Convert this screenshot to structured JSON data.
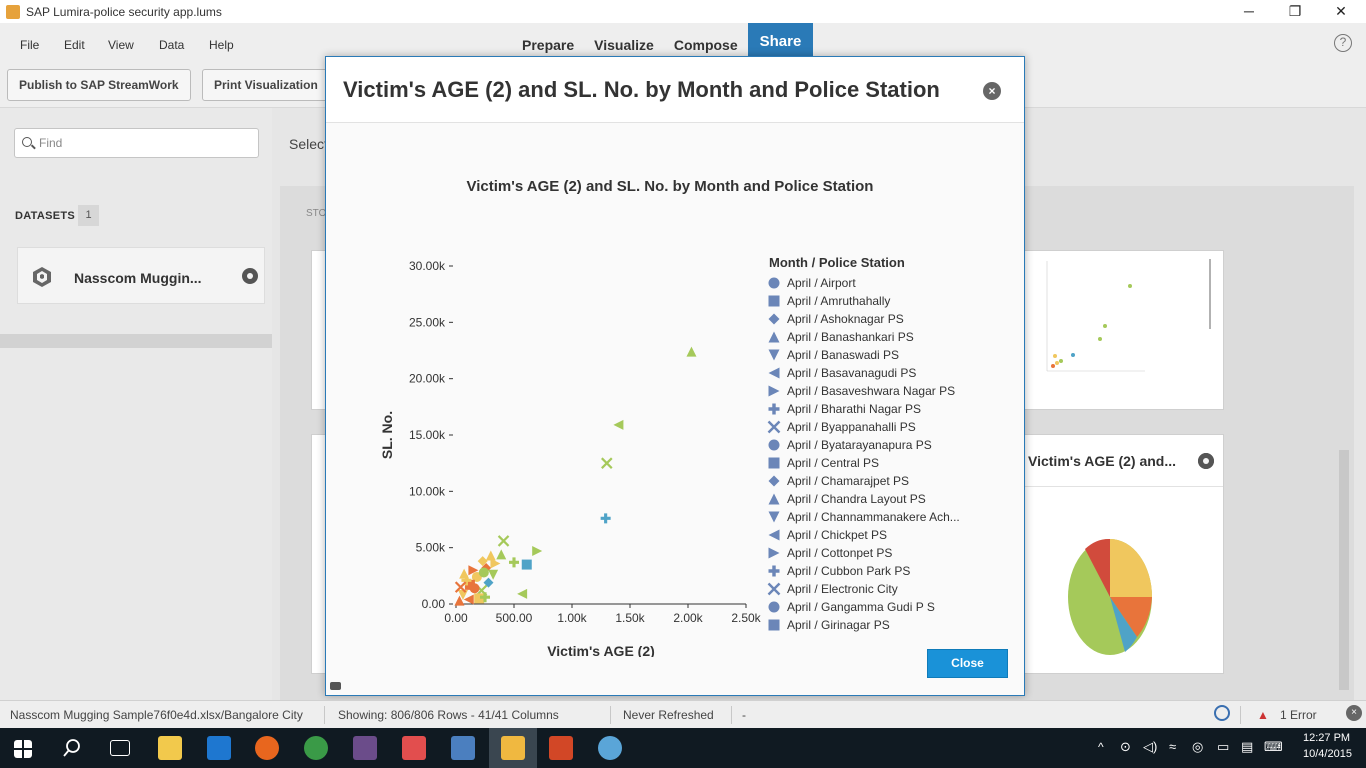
{
  "window": {
    "title": "SAP Lumira-police security app.lums",
    "controls": {
      "minimize": "─",
      "maximize": "❐",
      "close": "✕"
    }
  },
  "menu": {
    "items": [
      "File",
      "Edit",
      "View",
      "Data",
      "Help"
    ]
  },
  "tabs": [
    "Prepare",
    "Visualize",
    "Compose",
    "Share"
  ],
  "toolbar": {
    "publish": "Publish to SAP StreamWork",
    "print": "Print Visualization"
  },
  "search": {
    "placeholder": "Find"
  },
  "datasets": {
    "label": "DATASETS",
    "count": "1",
    "item": "Nasscom Muggin..."
  },
  "main": {
    "select_text": "Select",
    "story_label": "STO"
  },
  "background_card": {
    "title": "Victim's AGE (2) and..."
  },
  "modal": {
    "title": "Victim's AGE (2) and SL. No. by Month and Police Station",
    "close_button": "Close"
  },
  "chart_data": {
    "type": "scatter",
    "title": "Victim's AGE (2) and SL. No. by Month and Police Station",
    "xlabel": "Victim's AGE (2)",
    "ylabel": "SL. No.",
    "xlim": [
      0,
      2500
    ],
    "ylim": [
      0,
      30000
    ],
    "x_ticks": [
      "0.00",
      "500.00",
      "1.00k",
      "1.50k",
      "2.00k",
      "2.50k"
    ],
    "y_ticks": [
      "0.00",
      "5.00k",
      "10.00k",
      "15.00k",
      "20.00k",
      "25.00k",
      "30.00k"
    ],
    "legend_title": "Month / Police Station",
    "legend": [
      {
        "label": "April / Airport",
        "shape": "circle"
      },
      {
        "label": "April / Amruthahally",
        "shape": "square"
      },
      {
        "label": "April / Ashoknagar PS",
        "shape": "diamond"
      },
      {
        "label": "April / Banashankari PS",
        "shape": "triangle-up"
      },
      {
        "label": "April / Banaswadi PS",
        "shape": "triangle-down"
      },
      {
        "label": "April / Basavanagudi PS",
        "shape": "triangle-left"
      },
      {
        "label": "April / Basaveshwara Nagar PS",
        "shape": "triangle-right"
      },
      {
        "label": "April / Bharathi Nagar PS",
        "shape": "plus"
      },
      {
        "label": "April / Byappanahalli PS",
        "shape": "x"
      },
      {
        "label": "April / Byatarayanapura PS",
        "shape": "circle"
      },
      {
        "label": "April / Central PS",
        "shape": "square"
      },
      {
        "label": "April / Chamarajpet PS",
        "shape": "diamond"
      },
      {
        "label": "April / Chandra Layout PS",
        "shape": "triangle-up"
      },
      {
        "label": "April / Channammanakere Ach...",
        "shape": "triangle-down"
      },
      {
        "label": "April / Chickpet PS",
        "shape": "triangle-left"
      },
      {
        "label": "April / Cottonpet PS",
        "shape": "triangle-right"
      },
      {
        "label": "April / Cubbon Park PS",
        "shape": "plus"
      },
      {
        "label": "April / Electronic City",
        "shape": "x"
      },
      {
        "label": "April / Gangamma Gudi P S",
        "shape": "circle"
      },
      {
        "label": "April / Girinagar PS",
        "shape": "square"
      }
    ],
    "points": [
      {
        "x": 2030,
        "y": 22400,
        "shape": "triangle-up",
        "color": "#a5c95a"
      },
      {
        "x": 1400,
        "y": 15900,
        "shape": "triangle-left",
        "color": "#a5c95a"
      },
      {
        "x": 1300,
        "y": 12500,
        "shape": "x",
        "color": "#a5c95a"
      },
      {
        "x": 1290,
        "y": 7600,
        "shape": "plus",
        "color": "#4fa3c7"
      },
      {
        "x": 610,
        "y": 3500,
        "shape": "square",
        "color": "#4fa3c7"
      },
      {
        "x": 700,
        "y": 4700,
        "shape": "triangle-right",
        "color": "#a5c95a"
      },
      {
        "x": 500,
        "y": 3700,
        "shape": "plus",
        "color": "#a5c95a"
      },
      {
        "x": 410,
        "y": 5600,
        "shape": "x",
        "color": "#a5c95a"
      },
      {
        "x": 390,
        "y": 4400,
        "shape": "triangle-up",
        "color": "#a5c95a"
      },
      {
        "x": 570,
        "y": 900,
        "shape": "triangle-left",
        "color": "#a5c95a"
      },
      {
        "x": 300,
        "y": 4300,
        "shape": "triangle-up",
        "color": "#f0c75e"
      },
      {
        "x": 260,
        "y": 3200,
        "shape": "diamond",
        "color": "#e8743b"
      },
      {
        "x": 180,
        "y": 2400,
        "shape": "circle",
        "color": "#f0c75e"
      },
      {
        "x": 120,
        "y": 1700,
        "shape": "square",
        "color": "#e8743b"
      },
      {
        "x": 60,
        "y": 800,
        "shape": "triangle-down",
        "color": "#f0c75e"
      },
      {
        "x": 220,
        "y": 1200,
        "shape": "x",
        "color": "#a5c95a"
      },
      {
        "x": 150,
        "y": 3000,
        "shape": "triangle-right",
        "color": "#e8743b"
      },
      {
        "x": 90,
        "y": 2100,
        "shape": "plus",
        "color": "#f0c75e"
      },
      {
        "x": 240,
        "y": 2800,
        "shape": "circle",
        "color": "#a5c95a"
      },
      {
        "x": 30,
        "y": 300,
        "shape": "triangle-up",
        "color": "#e8743b"
      },
      {
        "x": 200,
        "y": 500,
        "shape": "square",
        "color": "#f0c75e"
      },
      {
        "x": 280,
        "y": 1900,
        "shape": "diamond",
        "color": "#4fa3c7"
      },
      {
        "x": 110,
        "y": 400,
        "shape": "triangle-left",
        "color": "#e8743b"
      },
      {
        "x": 320,
        "y": 2600,
        "shape": "triangle-down",
        "color": "#a5c95a"
      },
      {
        "x": 70,
        "y": 2700,
        "shape": "triangle-up",
        "color": "#f0c75e"
      },
      {
        "x": 160,
        "y": 1400,
        "shape": "circle",
        "color": "#e8743b"
      },
      {
        "x": 250,
        "y": 600,
        "shape": "plus",
        "color": "#a5c95a"
      },
      {
        "x": 340,
        "y": 3600,
        "shape": "triangle-right",
        "color": "#f0c75e"
      },
      {
        "x": 40,
        "y": 1500,
        "shape": "x",
        "color": "#e8743b"
      },
      {
        "x": 230,
        "y": 3800,
        "shape": "diamond",
        "color": "#f0c75e"
      }
    ],
    "legend_color": "#6b86b8"
  },
  "status": {
    "file": "Nasscom Mugging Sample76f0e4d.xlsx/Bangalore City",
    "rows": "Showing: 806/806 Rows - 41/41 Columns",
    "refresh": "Never Refreshed",
    "dash": "-",
    "errors": "1 Error"
  },
  "clock": {
    "time": "12:27 PM",
    "date": "10/4/2015"
  }
}
